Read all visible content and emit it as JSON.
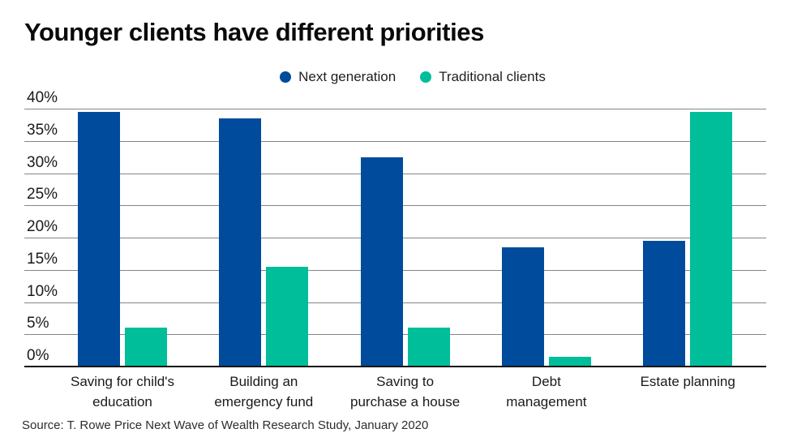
{
  "title": "Younger clients have different priorities",
  "source_note": "Source: T. Rowe Price Next Wave of Wealth Research Study, January 2020",
  "colors": {
    "next_generation": "#004B9B",
    "traditional_clients": "#00BE9A",
    "gridline": "#858585",
    "axis_baseline": "#161616",
    "text": "#1a1a1a"
  },
  "chart_data": {
    "type": "bar",
    "title": "Younger clients have different priorities",
    "categories": [
      "Saving for child's education",
      "Building an emergency fund",
      "Saving to purchase a house",
      "Debt management",
      "Estate planning"
    ],
    "category_label_lines": [
      [
        "Saving for child's",
        "education"
      ],
      [
        "Building an",
        "emergency fund"
      ],
      [
        "Saving to",
        "purchase a house"
      ],
      [
        "Debt",
        "management"
      ],
      [
        "Estate planning"
      ]
    ],
    "series": [
      {
        "name": "Next generation",
        "color": "#004B9B",
        "values": [
          39.5,
          38.5,
          32.5,
          18.5,
          19.5
        ]
      },
      {
        "name": "Traditional clients",
        "color": "#00BE9A",
        "values": [
          6,
          15.5,
          6,
          1.5,
          39.5
        ]
      }
    ],
    "xlabel": "",
    "ylabel": "",
    "ylim": [
      0,
      40
    ],
    "ytick_step": 5,
    "ytick_labels": [
      "0%",
      "5%",
      "10%",
      "15%",
      "20%",
      "25%",
      "30%",
      "35%",
      "40%"
    ],
    "grid": true,
    "legend_position": "top-center"
  }
}
